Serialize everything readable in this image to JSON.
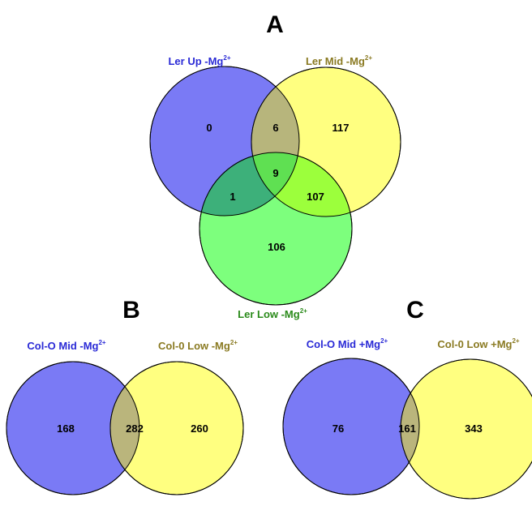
{
  "panels": {
    "A": {
      "letter": "A",
      "sets": [
        {
          "base": "Ler Up -Mg",
          "sup": "2+",
          "color": "#2a2ad6",
          "fill": "#7a7af5"
        },
        {
          "base": "Ler Mid -Mg",
          "sup": "2+",
          "color": "#8a7a22",
          "fill": "#ffff80"
        },
        {
          "base": "Ler Low -Mg",
          "sup": "2+",
          "color": "#2a8a1a",
          "fill": "#7dff7d"
        }
      ],
      "regions": {
        "only_up": "0",
        "up_mid": "6",
        "only_mid": "117",
        "all_three": "9",
        "up_low": "1",
        "mid_low": "107",
        "only_low": "106"
      }
    },
    "B": {
      "letter": "B",
      "sets": [
        {
          "base": "Col-O Mid -Mg",
          "sup": "2+",
          "color": "#2a2ad6",
          "fill": "#7a7af5"
        },
        {
          "base": "Col-0 Low -Mg",
          "sup": "2+",
          "color": "#8a7a22",
          "fill": "#ffff80"
        }
      ],
      "regions": {
        "only_left": "168",
        "both": "282",
        "only_right": "260"
      }
    },
    "C": {
      "letter": "C",
      "sets": [
        {
          "base": "Col-O Mid +Mg",
          "sup": "2+",
          "color": "#2a2ad6",
          "fill": "#7a7af5"
        },
        {
          "base": "Col-0 Low +Mg",
          "sup": "2+",
          "color": "#8a7a22",
          "fill": "#ffff80"
        }
      ],
      "regions": {
        "only_left": "76",
        "both": "161",
        "only_right": "343"
      }
    }
  },
  "overlap_colors": {
    "up_mid": "#b7b57c",
    "up_low": "#3db07a",
    "mid_low": "#9cff3c",
    "all_three": "#5fe052",
    "two_set": "#bab57c"
  }
}
